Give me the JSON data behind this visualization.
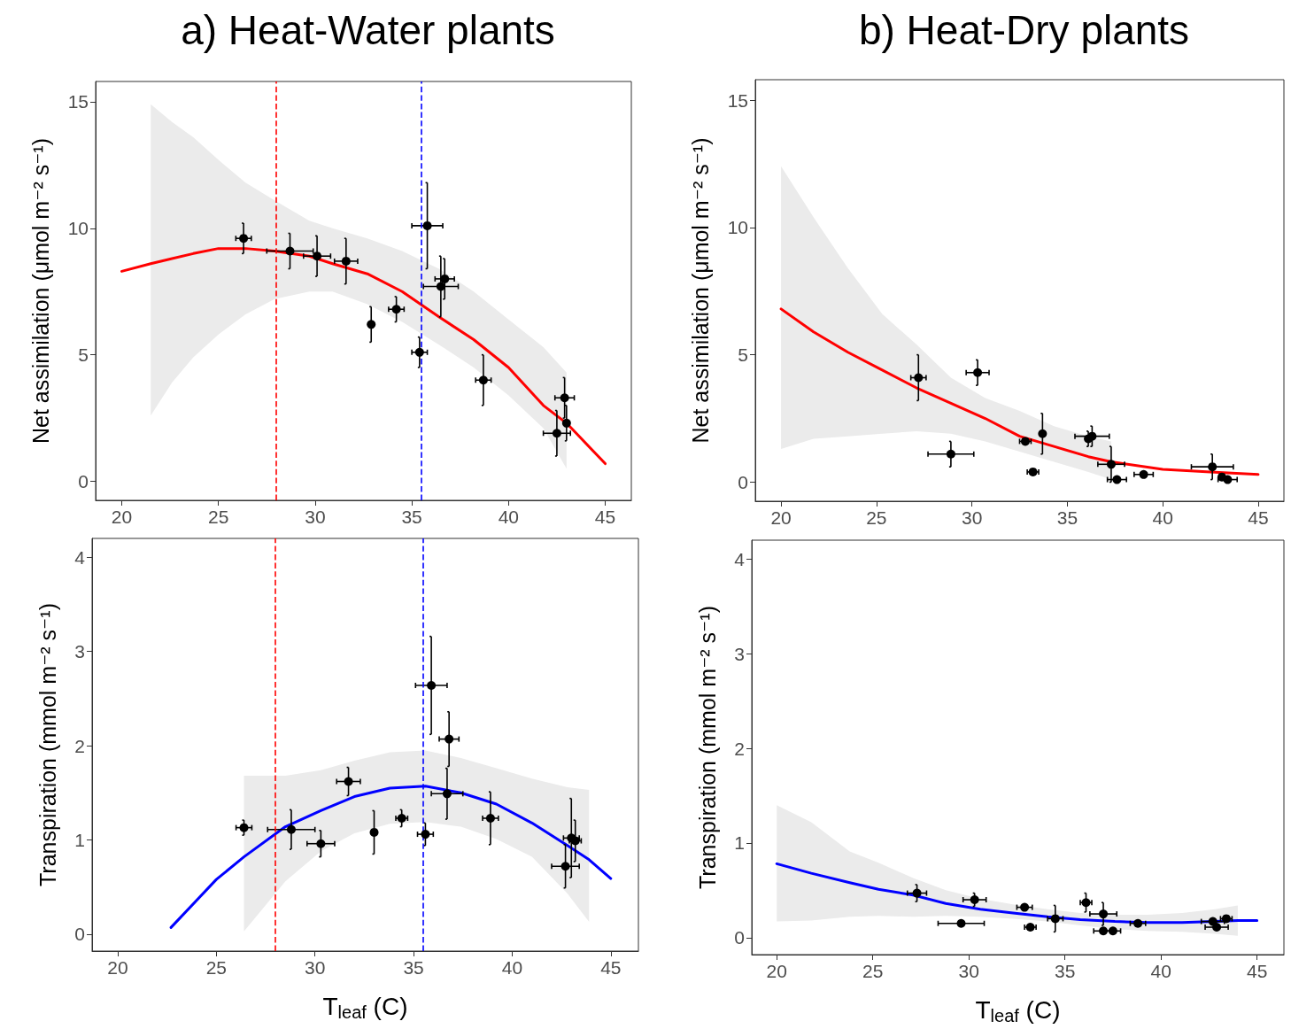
{
  "chart_data": [
    {
      "type": "scatter",
      "title": "a) Heat-Water plants",
      "ylabel": "Net assimilation (μmol m⁻² s⁻¹)",
      "xlim": [
        18.65,
        46.35
      ],
      "ylim": [
        -0.75,
        15.8
      ],
      "xticks": [
        20,
        25,
        30,
        35,
        40,
        45
      ],
      "yticks": [
        0,
        5,
        10,
        15
      ],
      "ref_lines": [
        {
          "axis": "x",
          "value": 28.0,
          "color": "#ff0000",
          "line_style": "dashed"
        },
        {
          "axis": "x",
          "value": 35.5,
          "color": "#0000ff",
          "line_style": "dashed"
        }
      ],
      "series": [
        {
          "color": "#000000",
          "marker": "circle",
          "x": [
            26.3,
            28.7,
            30.1,
            31.6,
            32.9,
            34.2,
            35.4,
            35.8,
            36.5,
            36.7,
            38.7,
            42.5,
            42.9,
            43.0
          ],
          "values": [
            9.6,
            9.1,
            8.9,
            8.7,
            6.2,
            6.8,
            5.1,
            10.1,
            7.7,
            8.0,
            4.0,
            1.9,
            3.3,
            2.3
          ],
          "errors": [
            0.6,
            0.7,
            0.8,
            0.9,
            0.7,
            0.5,
            0.6,
            1.7,
            1.2,
            0.8,
            1.0,
            0.9,
            0.8,
            0.7
          ],
          "xerrors": [
            0.4,
            1.2,
            0.7,
            0.6,
            null,
            0.4,
            0.4,
            0.8,
            0.9,
            0.5,
            0.4,
            0.7,
            0.5,
            null
          ]
        },
        {
          "type": "line",
          "color": "#ff0000",
          "marker": "none",
          "x": [
            20,
            21.5,
            22.6,
            23.7,
            25.0,
            26.4,
            27.9,
            29.7,
            30.9,
            32.7,
            34.5,
            36.4,
            38.2,
            40.0,
            41.8,
            43.0,
            45
          ],
          "values": [
            8.3,
            8.6,
            8.8,
            9.0,
            9.2,
            9.2,
            9.1,
            8.9,
            8.6,
            8.2,
            7.5,
            6.5,
            5.6,
            4.5,
            3.0,
            2.3,
            0.7
          ],
          "lower": [
            null,
            2.6,
            3.9,
            4.9,
            5.8,
            6.6,
            7.2,
            7.5,
            7.5,
            7.0,
            6.3,
            5.4,
            4.5,
            3.4,
            2.1,
            0.5,
            null
          ],
          "upper": [
            null,
            14.9,
            14.2,
            13.6,
            12.7,
            11.8,
            11.1,
            10.3,
            10.0,
            9.6,
            9.1,
            8.4,
            7.5,
            6.4,
            5.3,
            4.3,
            null
          ]
        }
      ]
    },
    {
      "type": "scatter",
      "title": "b) Heat-Dry plants",
      "ylabel": "Net assimilation (μmol m⁻² s⁻¹)",
      "xlim": [
        18.65,
        46.35
      ],
      "ylim": [
        -0.75,
        15.8
      ],
      "xticks": [
        20,
        25,
        30,
        35,
        40,
        45
      ],
      "yticks": [
        0,
        5,
        10,
        15
      ],
      "series": [
        {
          "color": "#000000",
          "marker": "circle",
          "x": [
            27.2,
            30.3,
            28.9,
            32.8,
            33.2,
            33.7,
            36.1,
            36.3,
            37.3,
            37.6,
            39.0,
            42.6,
            43.1,
            43.4
          ],
          "values": [
            4.1,
            4.3,
            1.1,
            1.6,
            0.4,
            1.9,
            1.7,
            1.8,
            0.7,
            0.1,
            0.3,
            0.6,
            0.2,
            0.1
          ],
          "errors": [
            0.9,
            0.5,
            0.5,
            null,
            null,
            0.8,
            0.3,
            0.4,
            0.7,
            null,
            null,
            0.5,
            null,
            null
          ],
          "xerrors": [
            0.4,
            0.6,
            1.2,
            0.3,
            0.3,
            null,
            null,
            0.9,
            0.7,
            0.5,
            0.5,
            1.1,
            null,
            0.5
          ]
        },
        {
          "type": "line",
          "color": "#ff0000",
          "marker": "none",
          "x": [
            20,
            21.7,
            23.5,
            25.3,
            27.1,
            28.9,
            30.7,
            32.5,
            34.3,
            36.1,
            37.3,
            40,
            42.5,
            45
          ],
          "values": [
            6.8,
            5.9,
            5.1,
            4.4,
            3.7,
            3.1,
            2.5,
            1.8,
            1.4,
            1.0,
            0.8,
            0.5,
            0.4,
            0.3
          ],
          "lower": [
            1.3,
            1.7,
            1.8,
            1.9,
            2.0,
            1.9,
            1.6,
            1.2,
            0.8,
            0.4,
            0.1,
            null,
            null,
            null
          ],
          "upper": [
            12.4,
            10.4,
            8.4,
            6.6,
            5.4,
            4.1,
            3.3,
            2.8,
            2.2,
            1.8,
            1.6,
            null,
            null,
            null
          ]
        }
      ]
    },
    {
      "type": "scatter",
      "xlabel": "T$_{leaf}$ (C)",
      "ylabel": "Transpiration (mmol m⁻² s⁻¹)",
      "xlim": [
        18.7,
        46.4
      ],
      "ylim": [
        -0.18,
        4.2
      ],
      "xticks": [
        20,
        25,
        30,
        35,
        40,
        45
      ],
      "yticks": [
        0,
        1,
        2,
        3,
        4
      ],
      "ref_lines": [
        {
          "axis": "x",
          "value": 28.0,
          "color": "#ff0000",
          "line_style": "dashed"
        },
        {
          "axis": "x",
          "value": 35.5,
          "color": "#0000ff",
          "line_style": "dashed"
        }
      ],
      "series": [
        {
          "color": "#000000",
          "marker": "circle",
          "x": [
            26.4,
            28.8,
            30.3,
            31.7,
            33.0,
            34.4,
            35.6,
            35.9,
            36.8,
            36.7,
            38.9,
            42.7,
            43.0,
            43.2
          ],
          "values": [
            1.13,
            1.11,
            0.96,
            1.62,
            1.08,
            1.23,
            1.06,
            2.64,
            2.07,
            1.49,
            1.23,
            0.72,
            1.02,
            0.99
          ],
          "errors": [
            0.08,
            0.21,
            0.14,
            0.15,
            0.23,
            0.09,
            0.12,
            0.52,
            0.29,
            0.27,
            0.28,
            0.23,
            0.42,
            0.22
          ],
          "xerrors": [
            0.4,
            1.2,
            0.7,
            0.6,
            null,
            0.3,
            0.4,
            0.8,
            0.5,
            0.8,
            0.4,
            0.7,
            0.4,
            0.3
          ]
        },
        {
          "type": "line",
          "color": "#0000ff",
          "marker": "none",
          "x": [
            22.7,
            25.0,
            26.4,
            28.5,
            30.3,
            32.0,
            33.8,
            35.6,
            37.4,
            39.2,
            41.0,
            42.8,
            43.9,
            45
          ],
          "values": [
            0.07,
            0.58,
            0.82,
            1.14,
            1.31,
            1.46,
            1.55,
            1.57,
            1.5,
            1.38,
            1.18,
            0.94,
            0.79,
            0.59
          ],
          "lower": [
            null,
            null,
            0.03,
            0.56,
            0.88,
            1.07,
            1.17,
            1.19,
            1.14,
            1.01,
            0.82,
            0.43,
            0.13,
            null
          ],
          "upper": [
            null,
            null,
            1.68,
            1.68,
            1.74,
            1.84,
            1.93,
            1.95,
            1.87,
            1.76,
            1.65,
            1.56,
            1.53,
            null
          ]
        }
      ]
    },
    {
      "type": "scatter",
      "xlabel": "T$_{leaf}$ (C)",
      "ylabel": "Transpiration (mmol m⁻² s⁻¹)",
      "xlim": [
        18.7,
        46.4
      ],
      "ylim": [
        -0.18,
        4.2
      ],
      "xticks": [
        20,
        25,
        30,
        35,
        40,
        45
      ],
      "yticks": [
        0,
        1,
        2,
        3,
        4
      ],
      "series": [
        {
          "color": "#000000",
          "marker": "circle",
          "x": [
            27.3,
            30.3,
            29.6,
            32.9,
            33.2,
            34.5,
            36.1,
            37.0,
            37.0,
            37.5,
            38.8,
            42.7,
            42.9,
            43.4
          ],
          "values": [
            0.47,
            0.4,
            0.15,
            0.32,
            0.11,
            0.2,
            0.37,
            0.25,
            0.07,
            0.07,
            0.15,
            0.17,
            0.11,
            0.2
          ],
          "errors": [
            0.09,
            0.07,
            null,
            null,
            null,
            0.14,
            0.1,
            0.12,
            null,
            null,
            null,
            null,
            null,
            null
          ],
          "xerrors": [
            0.5,
            0.6,
            1.2,
            0.4,
            0.3,
            0.4,
            0.3,
            0.7,
            0.5,
            0.4,
            0.4,
            0.6,
            0.6,
            0.3
          ]
        },
        {
          "type": "line",
          "color": "#0000ff",
          "marker": "none",
          "x": [
            20,
            21.8,
            23.8,
            25.3,
            27.1,
            28.8,
            30.6,
            32.3,
            34.1,
            35.8,
            37.6,
            39.3,
            41.1,
            42.8,
            44.0,
            45
          ],
          "values": [
            0.78,
            0.68,
            0.58,
            0.51,
            0.45,
            0.36,
            0.3,
            0.26,
            0.22,
            0.19,
            0.17,
            0.16,
            0.16,
            0.17,
            0.18,
            0.18
          ],
          "lower": [
            0.17,
            0.18,
            0.22,
            0.23,
            0.22,
            0.23,
            0.22,
            0.2,
            0.17,
            0.13,
            0.09,
            0.07,
            0.06,
            0.04,
            0.02,
            null
          ],
          "upper": [
            1.4,
            1.22,
            0.91,
            0.79,
            0.63,
            0.5,
            0.41,
            0.35,
            0.3,
            0.26,
            0.24,
            0.24,
            0.26,
            0.3,
            0.34,
            null
          ]
        }
      ]
    }
  ]
}
